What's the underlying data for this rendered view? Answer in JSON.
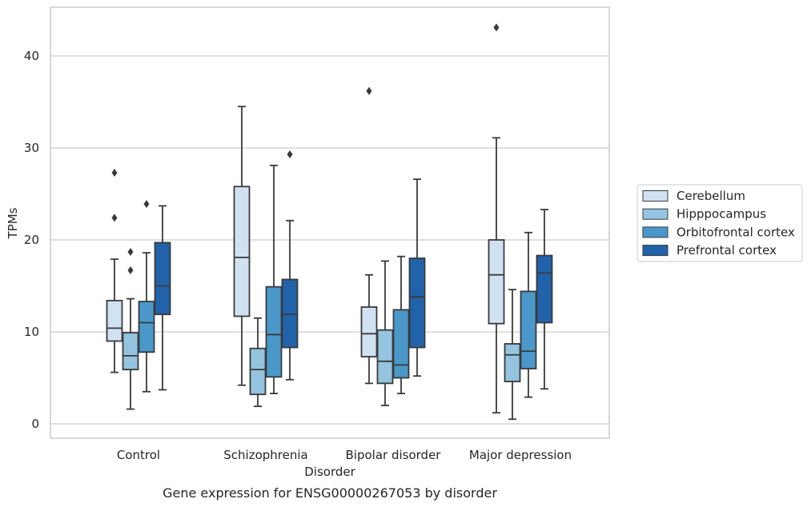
{
  "chart_data": {
    "type": "box",
    "xlabel": "Disorder",
    "ylabel": "TPMs",
    "caption": "Gene expression for ENSG00000267053 by disorder",
    "ylim": [
      -1.5,
      45.3
    ],
    "yticks": [
      0,
      10,
      20,
      30,
      40
    ],
    "grid": "horizontal",
    "legend_position": "right",
    "categories": [
      "Control",
      "Schizophrenia",
      "Bipolar disorder",
      "Major depression"
    ],
    "series": [
      {
        "name": "Cerebellum",
        "color": "#d0e1f2",
        "boxes": [
          {
            "whisker_low": 5.6,
            "q1": 9.0,
            "median": 10.4,
            "q3": 13.4,
            "whisker_high": 17.9,
            "outliers": [
              22.4,
              27.3
            ]
          },
          {
            "whisker_low": 4.2,
            "q1": 11.7,
            "median": 18.1,
            "q3": 25.8,
            "whisker_high": 34.5,
            "outliers": []
          },
          {
            "whisker_low": 4.4,
            "q1": 7.3,
            "median": 9.8,
            "q3": 12.7,
            "whisker_high": 16.2,
            "outliers": [
              36.2
            ]
          },
          {
            "whisker_low": 1.2,
            "q1": 10.9,
            "median": 16.2,
            "q3": 20.0,
            "whisker_high": 31.1,
            "outliers": [
              43.1
            ]
          }
        ]
      },
      {
        "name": "Hipppocampus",
        "color": "#94c4df",
        "boxes": [
          {
            "whisker_low": 1.6,
            "q1": 5.9,
            "median": 7.4,
            "q3": 9.9,
            "whisker_high": 13.6,
            "outliers": [
              16.7,
              18.7
            ]
          },
          {
            "whisker_low": 1.9,
            "q1": 3.2,
            "median": 5.9,
            "q3": 8.2,
            "whisker_high": 11.5,
            "outliers": []
          },
          {
            "whisker_low": 2.0,
            "q1": 4.4,
            "median": 6.8,
            "q3": 10.2,
            "whisker_high": 17.7,
            "outliers": []
          },
          {
            "whisker_low": 0.5,
            "q1": 4.6,
            "median": 7.5,
            "q3": 8.7,
            "whisker_high": 14.6,
            "outliers": []
          }
        ]
      },
      {
        "name": "Orbitofrontal cortex",
        "color": "#4a98c9",
        "boxes": [
          {
            "whisker_low": 3.5,
            "q1": 7.8,
            "median": 11.0,
            "q3": 13.3,
            "whisker_high": 18.6,
            "outliers": [
              23.9
            ]
          },
          {
            "whisker_low": 3.3,
            "q1": 5.1,
            "median": 9.7,
            "q3": 14.9,
            "whisker_high": 28.1,
            "outliers": []
          },
          {
            "whisker_low": 3.3,
            "q1": 5.0,
            "median": 6.4,
            "q3": 12.4,
            "whisker_high": 18.2,
            "outliers": []
          },
          {
            "whisker_low": 2.9,
            "q1": 6.0,
            "median": 7.9,
            "q3": 14.4,
            "whisker_high": 20.8,
            "outliers": []
          }
        ]
      },
      {
        "name": "Prefrontal cortex",
        "color": "#2163aa",
        "boxes": [
          {
            "whisker_low": 3.7,
            "q1": 11.9,
            "median": 15.0,
            "q3": 19.7,
            "whisker_high": 23.7,
            "outliers": []
          },
          {
            "whisker_low": 4.8,
            "q1": 8.3,
            "median": 11.9,
            "q3": 15.7,
            "whisker_high": 22.1,
            "outliers": [
              29.3
            ]
          },
          {
            "whisker_low": 5.2,
            "q1": 8.3,
            "median": 13.8,
            "q3": 18.0,
            "whisker_high": 26.6,
            "outliers": []
          },
          {
            "whisker_low": 3.8,
            "q1": 11.0,
            "median": 16.4,
            "q3": 18.3,
            "whisker_high": 23.3,
            "outliers": []
          }
        ]
      }
    ]
  }
}
